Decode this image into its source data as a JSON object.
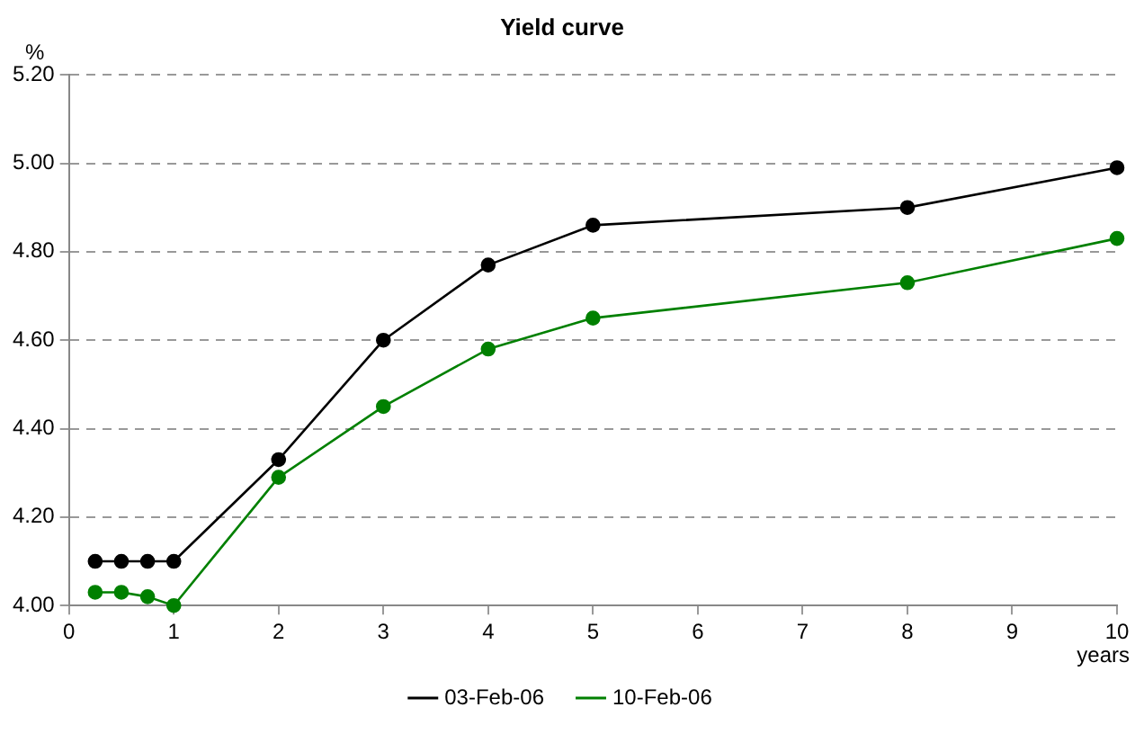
{
  "chart_data": {
    "type": "line",
    "title": "Yield curve",
    "xlabel": "years",
    "ylabel": "%",
    "series": [
      {
        "name": "03-Feb-06",
        "color": "#000000",
        "x": [
          0.25,
          0.5,
          0.75,
          1,
          2,
          3,
          4,
          5,
          8,
          10
        ],
        "values": [
          4.1,
          4.1,
          4.1,
          4.1,
          4.33,
          4.6,
          4.77,
          4.86,
          4.9,
          4.99
        ]
      },
      {
        "name": "10-Feb-06",
        "color": "#008000",
        "x": [
          0.25,
          0.5,
          0.75,
          1,
          2,
          3,
          4,
          5,
          8,
          10
        ],
        "values": [
          4.03,
          4.03,
          4.02,
          4.0,
          4.29,
          4.45,
          4.58,
          4.65,
          4.73,
          4.83
        ]
      }
    ],
    "xlim": [
      0,
      10
    ],
    "xticks": [
      0,
      1,
      2,
      3,
      4,
      5,
      6,
      7,
      8,
      9,
      10
    ],
    "ylim": [
      4,
      5.2
    ],
    "yticks": [
      {
        "value": 4,
        "label": "4.00"
      },
      {
        "value": 4.2,
        "label": "4.20"
      },
      {
        "value": 4.4,
        "label": "4.40"
      },
      {
        "value": 4.6,
        "label": "4.60"
      },
      {
        "value": 4.8,
        "label": "4.80"
      },
      {
        "value": 5,
        "label": "5.00"
      },
      {
        "value": 5.2,
        "label": "5.20"
      }
    ],
    "grid": "y",
    "legend": "bottom",
    "marker": "circle",
    "line_style": "solid"
  }
}
